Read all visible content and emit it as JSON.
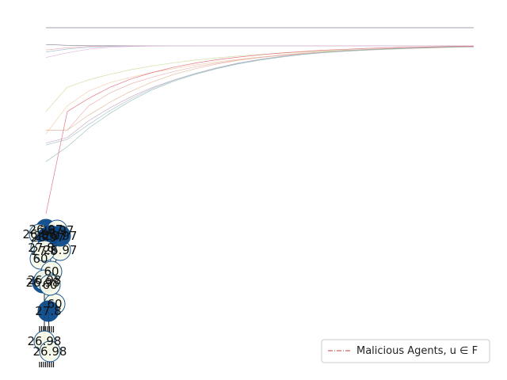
{
  "chart_data": {
    "type": "line",
    "x": [
      0,
      1,
      2,
      3,
      4,
      5,
      6,
      7,
      8,
      9,
      10,
      11,
      12,
      13,
      14,
      15,
      16,
      17,
      18,
      19,
      20
    ],
    "series": [
      {
        "values": [
          100,
          100,
          100,
          100,
          100,
          100,
          100,
          100,
          100,
          100,
          100,
          100,
          100,
          100,
          100,
          100,
          100,
          100,
          100,
          100,
          100
        ],
        "color": "#555555"
      },
      {
        "values": [
          100,
          100,
          100,
          100,
          100,
          100,
          100,
          100,
          100,
          100,
          100,
          100,
          100,
          100,
          100,
          100,
          100,
          100,
          100,
          100,
          100
        ],
        "color": "#8a9a5b"
      },
      {
        "values": [
          100,
          100,
          100,
          100,
          100,
          100,
          100,
          100,
          100,
          100,
          100,
          100,
          100,
          100,
          100,
          100,
          100,
          100,
          100,
          100,
          100
        ],
        "color": "#b0a0c0"
      },
      {
        "values": [
          91,
          90.5,
          90.3,
          90.3,
          90.3,
          90.3,
          90.3,
          90.3,
          90.3,
          90.3,
          90.3,
          90.3,
          90.3,
          90.3,
          90.3,
          90.3,
          90.3,
          90.3,
          90.3,
          90.3,
          90.3
        ],
        "color": "#666677"
      },
      {
        "values": [
          88,
          89.2,
          89.9,
          90.1,
          90.2,
          90.3,
          90.3,
          90.3,
          90.3,
          90.3,
          90.3,
          90.3,
          90.3,
          90.3,
          90.3,
          90.3,
          90.3,
          90.3,
          90.3,
          90.3,
          90.3
        ],
        "color": "#e8a0a0"
      },
      {
        "values": [
          87,
          88.5,
          89.5,
          89.9,
          90.1,
          90.2,
          90.3,
          90.3,
          90.3,
          90.3,
          90.3,
          90.3,
          90.3,
          90.3,
          90.3,
          90.3,
          90.3,
          90.3,
          90.3,
          90.3,
          90.3
        ],
        "color": "#a0b8d8"
      },
      {
        "values": [
          84,
          86.5,
          88.5,
          89.5,
          89.9,
          90.1,
          90.2,
          90.3,
          90.3,
          90.3,
          90.3,
          90.3,
          90.3,
          90.3,
          90.3,
          90.3,
          90.3,
          90.3,
          90.3,
          90.3,
          90.3
        ],
        "color": "#e0b0d8"
      },
      {
        "values": [
          55,
          68,
          72,
          75,
          77.5,
          79.5,
          81.2,
          82.6,
          83.8,
          84.8,
          85.6,
          86.4,
          87.0,
          87.5,
          88.0,
          88.4,
          88.8,
          89.1,
          89.4,
          89.6,
          89.8
        ],
        "color": "#c8d890"
      },
      {
        "values": [
          43,
          58,
          66,
          70.5,
          73.5,
          76,
          78,
          80,
          81.6,
          83,
          84.2,
          85.2,
          86,
          86.8,
          87.4,
          87.9,
          88.4,
          88.8,
          89.1,
          89.4,
          89.6
        ],
        "color": "#f0c8a0"
      },
      {
        "values": [
          45,
          45,
          58,
          65,
          70,
          73.5,
          76.5,
          79,
          81,
          82.7,
          84,
          85.1,
          86,
          86.8,
          87.4,
          88,
          88.5,
          88.9,
          89.3,
          89.6,
          89.8
        ],
        "color": "#e8a8a8"
      },
      {
        "values": [
          45,
          45,
          53,
          60,
          66,
          71,
          75,
          78,
          80.5,
          82.5,
          84,
          85.3,
          86.3,
          87.1,
          87.8,
          88.3,
          88.8,
          89.2,
          89.5,
          89.7,
          89.9
        ],
        "color": "#e0b090"
      },
      {
        "values": [
          38,
          41,
          50,
          57,
          63,
          68,
          72,
          75.5,
          78.5,
          81,
          83,
          84.6,
          85.8,
          86.8,
          87.6,
          88.2,
          88.7,
          89.1,
          89.4,
          89.7,
          89.9
        ],
        "color": "#c0a0b8"
      },
      {
        "values": [
          37,
          40,
          48,
          55.5,
          62,
          67.5,
          71.8,
          75.3,
          78.3,
          80.8,
          82.8,
          84.4,
          85.7,
          86.7,
          87.5,
          88.1,
          88.6,
          89.0,
          89.3,
          89.6,
          89.8
        ],
        "color": "#a0c0d0"
      },
      {
        "values": [
          28,
          36,
          46,
          54,
          61,
          66.8,
          71.3,
          75,
          78,
          80.6,
          82.6,
          84.2,
          85.6,
          86.6,
          87.4,
          88.0,
          88.5,
          88.9,
          89.3,
          89.6,
          89.8
        ],
        "color": "#90b8b0"
      },
      {
        "values": [
          0,
          55,
          62,
          68,
          72.5,
          76,
          78.8,
          81,
          82.8,
          84.2,
          85.4,
          86.4,
          87.2,
          87.9,
          88.4,
          88.9,
          89.2,
          89.5,
          89.7,
          89.9,
          90
        ],
        "color": "#e06070"
      }
    ],
    "xlim": [
      0,
      20
    ],
    "ylim": [
      0,
      100
    ],
    "grid": false,
    "legend": {
      "placement": "lower-right",
      "entries": [
        {
          "label": "Malicious Agents, u ∈ F",
          "color": "#c04040"
        }
      ]
    },
    "network": {
      "node_color": "#0b4a8a",
      "node_face": "#f8fbea",
      "nodes": [
        {
          "label": "26.97"
        },
        {
          "label": "26.97"
        },
        {
          "label": "26.98"
        },
        {
          "label": "26.97"
        },
        {
          "label": "27.8"
        },
        {
          "label": "26.97"
        },
        {
          "label": "26.97"
        },
        {
          "label": "60"
        },
        {
          "label": "27.8"
        },
        {
          "label": "26.97"
        },
        {
          "label": "60"
        },
        {
          "label": "60"
        },
        {
          "label": "26.98"
        },
        {
          "label": "26.98"
        },
        {
          "label": "60"
        },
        {
          "label": "27.8"
        },
        {
          "label": "26.98"
        },
        {
          "label": "26.98"
        }
      ]
    }
  }
}
